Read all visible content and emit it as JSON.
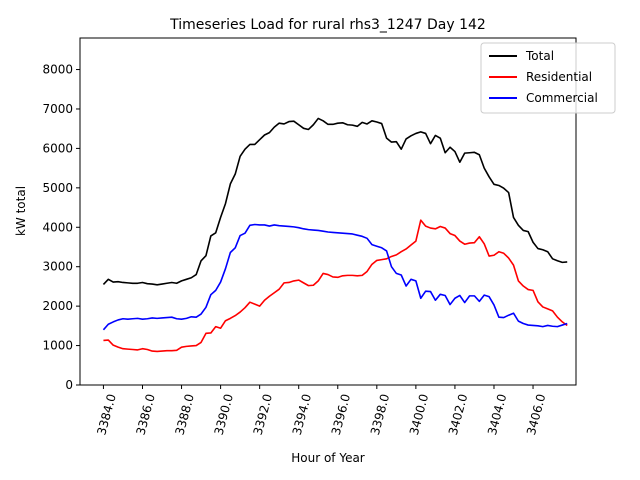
{
  "chart_data": {
    "type": "line",
    "title": "Timeseries Load for rural rhs3_1247  Day 142",
    "xlabel": "Hour of Year",
    "ylabel": "kW total",
    "xlim": [
      3382.8,
      3408.2
    ],
    "ylim": [
      0,
      8800
    ],
    "xticks": [
      3384,
      3386,
      3388,
      3390,
      3392,
      3394,
      3396,
      3398,
      3400,
      3402,
      3404,
      3406
    ],
    "xtick_labels": [
      "3384.0",
      "3386.0",
      "3388.0",
      "3390.0",
      "3392.0",
      "3394.0",
      "3396.0",
      "3398.0",
      "3400.0",
      "3402.0",
      "3404.0",
      "3406.0"
    ],
    "yticks": [
      0,
      1000,
      2000,
      3000,
      4000,
      5000,
      6000,
      7000,
      8000
    ],
    "ytick_labels": [
      "0",
      "1000",
      "2000",
      "3000",
      "4000",
      "5000",
      "6000",
      "7000",
      "8000"
    ],
    "legend_position": "top-right",
    "x": [
      3384.0,
      3384.25,
      3384.5,
      3384.75,
      3385.0,
      3385.25,
      3385.5,
      3385.75,
      3386.0,
      3386.25,
      3386.5,
      3386.75,
      3387.0,
      3387.25,
      3387.5,
      3387.75,
      3388.0,
      3388.25,
      3388.5,
      3388.75,
      3389.0,
      3389.25,
      3389.5,
      3389.75,
      3390.0,
      3390.25,
      3390.5,
      3390.75,
      3391.0,
      3391.25,
      3391.5,
      3391.75,
      3392.0,
      3392.25,
      3392.5,
      3392.75,
      3393.0,
      3393.25,
      3393.5,
      3393.75,
      3394.0,
      3394.25,
      3394.5,
      3394.75,
      3395.0,
      3395.25,
      3395.5,
      3395.75,
      3396.0,
      3396.25,
      3396.5,
      3396.75,
      3397.0,
      3397.25,
      3397.5,
      3397.75,
      3398.0,
      3398.25,
      3398.5,
      3398.75,
      3399.0,
      3399.25,
      3399.5,
      3399.75,
      3400.0,
      3400.25,
      3400.5,
      3400.75,
      3401.0,
      3401.25,
      3401.5,
      3401.75,
      3402.0,
      3402.25,
      3402.5,
      3402.75,
      3403.0,
      3403.25,
      3403.5,
      3403.75,
      3404.0,
      3404.25,
      3404.5,
      3404.75,
      3405.0,
      3405.25,
      3405.5,
      3405.75,
      3406.0,
      3406.25,
      3406.5,
      3406.75,
      3407.0,
      3407.25,
      3407.5,
      3407.75
    ],
    "series": [
      {
        "name": "Total",
        "color": "#000000",
        "values": [
          2550,
          2680,
          2610,
          2620,
          2600,
          2590,
          2580,
          2580,
          2600,
          2570,
          2560,
          2540,
          2560,
          2580,
          2600,
          2580,
          2640,
          2680,
          2720,
          2800,
          3150,
          3280,
          3780,
          3860,
          4250,
          4600,
          5100,
          5350,
          5800,
          5980,
          6100,
          6100,
          6220,
          6340,
          6400,
          6540,
          6640,
          6620,
          6680,
          6690,
          6600,
          6510,
          6480,
          6600,
          6760,
          6700,
          6610,
          6610,
          6640,
          6650,
          6600,
          6590,
          6560,
          6660,
          6620,
          6700,
          6670,
          6630,
          6260,
          6160,
          6170,
          5980,
          6240,
          6320,
          6380,
          6420,
          6380,
          6120,
          6330,
          6260,
          5890,
          6030,
          5920,
          5650,
          5880,
          5890,
          5900,
          5840,
          5500,
          5280,
          5090,
          5060,
          4990,
          4880,
          4250,
          4050,
          3920,
          3890,
          3620,
          3460,
          3430,
          3380,
          3200,
          3150,
          3110,
          3120
        ]
      },
      {
        "name": "Residential",
        "color": "#ff0000",
        "values": [
          1130,
          1140,
          1010,
          960,
          920,
          910,
          900,
          890,
          920,
          900,
          860,
          850,
          860,
          870,
          870,
          880,
          960,
          980,
          990,
          1000,
          1080,
          1310,
          1320,
          1480,
          1440,
          1630,
          1690,
          1760,
          1850,
          1960,
          2100,
          2050,
          2000,
          2150,
          2250,
          2340,
          2430,
          2590,
          2600,
          2640,
          2660,
          2590,
          2520,
          2530,
          2640,
          2830,
          2800,
          2740,
          2730,
          2770,
          2780,
          2780,
          2770,
          2780,
          2880,
          3060,
          3160,
          3180,
          3200,
          3260,
          3300,
          3380,
          3450,
          3550,
          3650,
          4180,
          4030,
          3980,
          3960,
          4020,
          3980,
          3840,
          3790,
          3650,
          3570,
          3600,
          3610,
          3760,
          3580,
          3270,
          3290,
          3380,
          3340,
          3220,
          3040,
          2640,
          2510,
          2420,
          2400,
          2110,
          1980,
          1930,
          1880,
          1720,
          1600,
          1510
        ]
      },
      {
        "name": "Commercial",
        "color": "#0000ff",
        "values": [
          1400,
          1540,
          1600,
          1650,
          1680,
          1670,
          1680,
          1690,
          1670,
          1680,
          1700,
          1690,
          1700,
          1710,
          1720,
          1680,
          1670,
          1690,
          1730,
          1720,
          1800,
          1970,
          2290,
          2400,
          2610,
          2950,
          3360,
          3480,
          3790,
          3850,
          4050,
          4070,
          4060,
          4060,
          4030,
          4060,
          4040,
          4030,
          4020,
          4010,
          3990,
          3960,
          3940,
          3930,
          3920,
          3900,
          3880,
          3870,
          3860,
          3850,
          3840,
          3830,
          3800,
          3770,
          3720,
          3560,
          3520,
          3480,
          3400,
          3000,
          2830,
          2790,
          2510,
          2680,
          2640,
          2200,
          2380,
          2370,
          2150,
          2300,
          2270,
          2040,
          2200,
          2270,
          2090,
          2260,
          2260,
          2120,
          2280,
          2240,
          2030,
          1720,
          1710,
          1770,
          1820,
          1620,
          1560,
          1520,
          1510,
          1500,
          1480,
          1510,
          1490,
          1480,
          1520,
          1560
        ]
      }
    ]
  }
}
